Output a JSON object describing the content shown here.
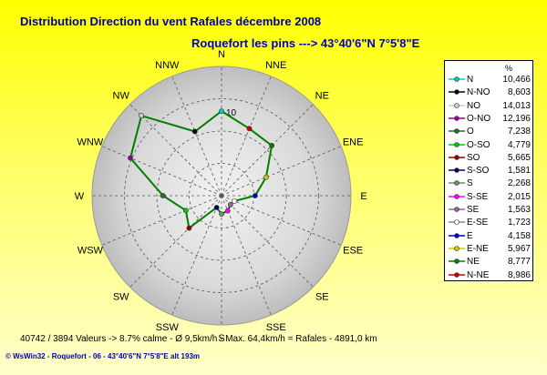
{
  "chart_data": {
    "type": "radar",
    "title": "Distribution Direction du vent Rafales  décembre 2008",
    "subtitle": "Roquefort les pins    --->  43°40'6\"N 7°5'8\"E",
    "directions": [
      "N",
      "NNE",
      "NE",
      "ENE",
      "E",
      "ESE",
      "SE",
      "SSE",
      "S",
      "SSW",
      "SW",
      "WSW",
      "W",
      "WNW",
      "NW",
      "NNW"
    ],
    "ring_label": "10",
    "rmax": 16,
    "ring_step": 4,
    "ring_label_value": 10,
    "series": {
      "values": [
        10.466,
        8.986,
        8.777,
        5.967,
        4.158,
        1.723,
        1.563,
        2.015,
        2.268,
        1.581,
        5.665,
        4.779,
        7.238,
        12.196,
        14.013,
        8.603
      ],
      "line_color": "#008000"
    },
    "legend_unit": "%",
    "legend": [
      {
        "label": "N",
        "value": "10,466",
        "color": "#00cccc"
      },
      {
        "label": "N-NO",
        "value": "8,603",
        "color": "#000000"
      },
      {
        "label": "NO",
        "value": "14,013",
        "color": "#cccccc"
      },
      {
        "label": "O-NO",
        "value": "12,196",
        "color": "#990099"
      },
      {
        "label": "O",
        "value": "7,238",
        "color": "#336633"
      },
      {
        "label": "O-SO",
        "value": "4,779",
        "color": "#00cc00"
      },
      {
        "label": "SO",
        "value": "5,665",
        "color": "#990000"
      },
      {
        "label": "S-SO",
        "value": "1,581",
        "color": "#000066"
      },
      {
        "label": "S",
        "value": "2,268",
        "color": "#669966"
      },
      {
        "label": "S-SE",
        "value": "2,015",
        "color": "#ff00ff"
      },
      {
        "label": "SE",
        "value": "1,563",
        "color": "#996699"
      },
      {
        "label": "E-SE",
        "value": "1,723",
        "color": "#ffffff"
      },
      {
        "label": "E",
        "value": "4,158",
        "color": "#0000cc"
      },
      {
        "label": "E-NE",
        "value": "5,967",
        "color": "#cccc00"
      },
      {
        "label": "NE",
        "value": "8,777",
        "color": "#008000"
      },
      {
        "label": "N-NE",
        "value": "8,986",
        "color": "#cc0000"
      }
    ]
  },
  "footer": "40742 / 3894 Valeurs  -> 8.7% calme   -   Ø 9,5km/h  -  Max. 64,4km/h = Rafales   -   4891,0 km",
  "credit": "© WsWin32   -   Roquefort - 06   -   43°40'6\"N 7°5'8\"E alt 193m"
}
